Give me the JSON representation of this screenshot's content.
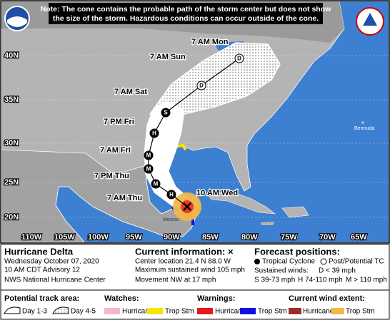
{
  "note": {
    "line1": "Note: The cone contains the probable path of the storm center but does not show",
    "line2": "the size of the storm. Hazardous conditions can occur outside of the cone."
  },
  "map": {
    "lat_labels": [
      "40N",
      "35N",
      "30N",
      "25N",
      "20N"
    ],
    "lon_labels": [
      "110W",
      "105W",
      "100W",
      "95W",
      "90W",
      "85W",
      "80W",
      "75W",
      "70W",
      "65W"
    ],
    "places": [
      "Mexico",
      "Bermuda"
    ],
    "forecast_labels": [
      "7 AM Mon",
      "7 AM Sun",
      "7 AM Sat",
      "7 PM Fri",
      "7 AM Fri",
      "7 PM Thu",
      "7 AM Thu",
      "10 AM Wed"
    ],
    "position_markers": [
      "D",
      "D",
      "S",
      "H",
      "M",
      "M",
      "M",
      "H"
    ]
  },
  "legend": {
    "storm": {
      "name": "Hurricane Delta",
      "date": "Wednesday October 07, 2020",
      "advisory": "10 AM CDT Advisory 12",
      "center": "NWS National Hurricane Center"
    },
    "current_info": {
      "title": "Current information: ×",
      "center_location": "Center location 21.4 N 88.0 W",
      "max_wind": "Maximum sustained wind 105 mph",
      "movement": "Movement NW at 17 mph"
    },
    "forecast": {
      "title": "Forecast positions:",
      "tropical_cyclone": "Tropical Cyclone",
      "post_tc": "Post/Potential TC",
      "sustained_winds": "Sustained winds:",
      "d": "D < 39 mph",
      "s": "S 39-73 mph",
      "h": "H 74-110 mph",
      "m": "M > 110 mph"
    },
    "track_area": {
      "title": "Potential track area:",
      "day13": "Day 1-3",
      "day45": "Day 4-5"
    },
    "watches": {
      "title": "Watches:",
      "hurricane": "Hurricane",
      "trop_stm": "Trop Stm"
    },
    "warnings": {
      "title": "Warnings:",
      "hurricane": "Hurricane",
      "trop_stm": "Trop Stm"
    },
    "wind_extent": {
      "title": "Current wind extent:",
      "hurricane": "Hurricane",
      "trop_stm": "Trop Stm"
    }
  }
}
